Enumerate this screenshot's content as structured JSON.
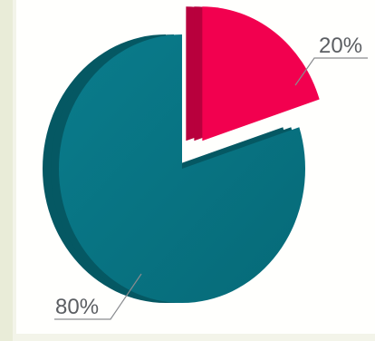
{
  "chart_data": {
    "type": "pie",
    "style": "3d-exploded",
    "categories": [
      "",
      ""
    ],
    "values": [
      80,
      20
    ],
    "data_labels": [
      "80%",
      "20%"
    ],
    "colors": {
      "main_slice": "#077686",
      "main_slice_side": "#055863",
      "exploded_slice": "#f2004f",
      "exploded_slice_side": "#b8003d",
      "label_text": "#5b5e62",
      "leader_line": "#8a8c8f"
    },
    "exploded": [
      false,
      true
    ],
    "legend": "none"
  }
}
